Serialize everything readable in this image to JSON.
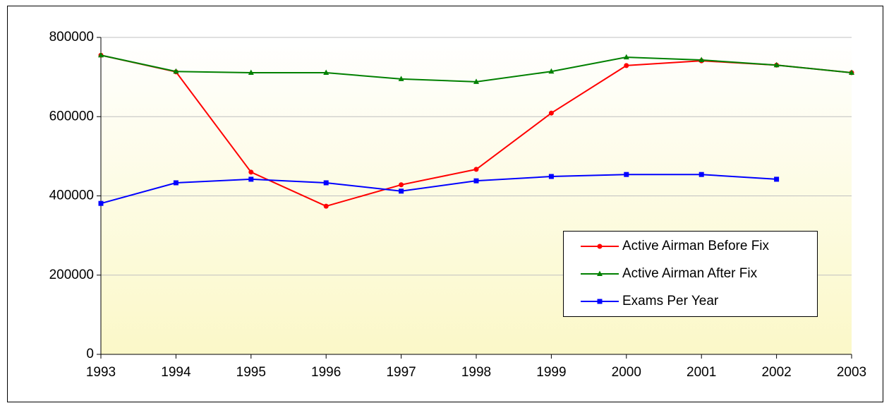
{
  "chart_data": {
    "type": "line",
    "x": [
      1993,
      1994,
      1995,
      1996,
      1997,
      1998,
      1999,
      2000,
      2001,
      2002,
      2003
    ],
    "series": [
      {
        "name": "Active Airman Before Fix",
        "color": "#ff0000",
        "marker": "circle",
        "values": [
          755000,
          713000,
          460000,
          374000,
          428000,
          467000,
          609000,
          729000,
          741000,
          730000,
          711000
        ]
      },
      {
        "name": "Active Airman After Fix",
        "color": "#008000",
        "marker": "triangle",
        "values": [
          755000,
          714000,
          711000,
          711000,
          695000,
          688000,
          714000,
          750000,
          743000,
          730000,
          711000
        ]
      },
      {
        "name": "Exams Per Year",
        "color": "#0000ff",
        "marker": "square",
        "values": [
          381000,
          433000,
          442000,
          433000,
          412000,
          438000,
          449000,
          454000,
          454000,
          442000,
          null
        ]
      }
    ],
    "xlim": [
      1993,
      2003
    ],
    "xticks": [
      1993,
      1994,
      1995,
      1996,
      1997,
      1998,
      1999,
      2000,
      2001,
      2002,
      2003
    ],
    "ylim": [
      0,
      800000
    ],
    "yticks": [
      0,
      200000,
      400000,
      600000,
      800000
    ],
    "grid": true,
    "legend": "lower right"
  }
}
